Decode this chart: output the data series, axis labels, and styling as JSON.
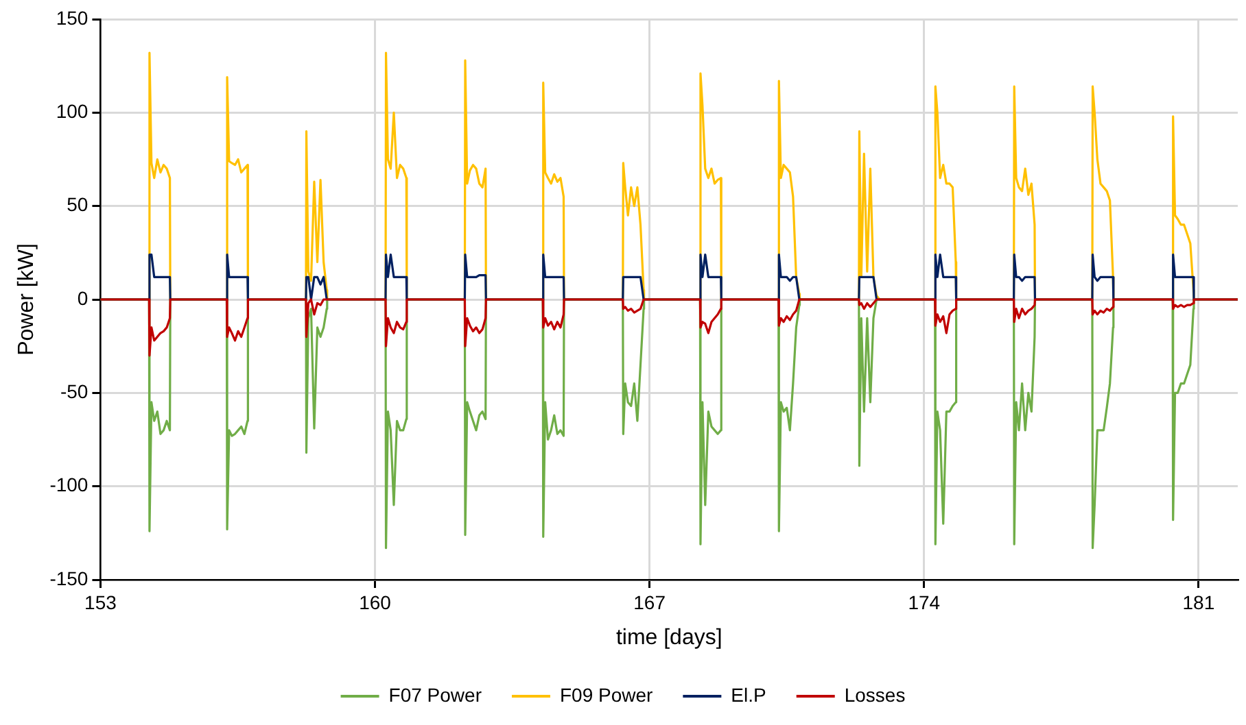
{
  "chart_data": {
    "type": "line",
    "xlabel": "time [days]",
    "ylabel": "Power [kW]",
    "xlim": [
      153,
      182
    ],
    "xticks": [
      153,
      160,
      167,
      174,
      181
    ],
    "ylim": [
      -150,
      150
    ],
    "yticks": [
      -150,
      -100,
      -50,
      0,
      50,
      100,
      150
    ],
    "grid": true,
    "legend": "bottom",
    "marker": "none",
    "line_style": "solid",
    "x": [
      153,
      154.24,
      154.25,
      154.3,
      154.37,
      154.45,
      154.53,
      154.61,
      154.69,
      154.77,
      154.78,
      156.22,
      156.23,
      156.28,
      156.35,
      156.43,
      156.51,
      156.59,
      156.67,
      156.75,
      156.76,
      158.24,
      158.25,
      158.3,
      158.37,
      158.45,
      158.53,
      158.61,
      158.69,
      158.77,
      158.78,
      160.27,
      160.28,
      160.33,
      160.4,
      160.48,
      160.56,
      160.64,
      160.72,
      160.8,
      160.81,
      162.29,
      162.3,
      162.35,
      162.42,
      162.5,
      162.58,
      162.66,
      162.74,
      162.82,
      162.83,
      164.28,
      164.29,
      164.34,
      164.41,
      164.49,
      164.57,
      164.65,
      164.73,
      164.81,
      164.82,
      166.32,
      166.33,
      166.38,
      166.45,
      166.53,
      166.61,
      166.69,
      166.77,
      166.85,
      166.86,
      168.29,
      168.3,
      168.35,
      168.42,
      168.5,
      168.58,
      168.66,
      168.74,
      168.82,
      168.83,
      170.29,
      170.3,
      170.35,
      170.42,
      170.5,
      170.58,
      170.66,
      170.74,
      170.82,
      170.83,
      172.34,
      172.35,
      172.4,
      172.47,
      172.55,
      172.63,
      172.71,
      172.79,
      172.87,
      172.88,
      174.28,
      174.29,
      174.34,
      174.41,
      174.49,
      174.57,
      174.65,
      174.73,
      174.81,
      174.82,
      176.29,
      176.3,
      176.35,
      176.42,
      176.5,
      176.58,
      176.66,
      176.74,
      176.82,
      176.83,
      178.29,
      178.3,
      178.35,
      178.42,
      178.5,
      178.58,
      178.66,
      178.74,
      178.82,
      178.83,
      180.34,
      180.35,
      180.4,
      180.47,
      180.55,
      180.63,
      180.71,
      180.79,
      180.87,
      180.88,
      182
    ],
    "series": [
      {
        "name": "F07 Power",
        "color": "#70ad47",
        "values": [
          0,
          0,
          -124,
          -55,
          -65,
          -60,
          -72,
          -70,
          -65,
          -70,
          0,
          0,
          -123,
          -70,
          -73,
          -72,
          -70,
          -68,
          -72,
          -65,
          0,
          0,
          -82,
          -10,
          -5,
          -69,
          -15,
          -20,
          -15,
          -5,
          0,
          0,
          -133,
          -60,
          -70,
          -110,
          -65,
          -70,
          -70,
          -64,
          0,
          0,
          -126,
          -55,
          -60,
          -65,
          -70,
          -62,
          -60,
          -64,
          0,
          0,
          -127,
          -55,
          -75,
          -70,
          -62,
          -72,
          -70,
          -73,
          0,
          0,
          -72,
          -45,
          -55,
          -57,
          -45,
          -65,
          -35,
          -5,
          0,
          0,
          -131,
          -55,
          -110,
          -60,
          -68,
          -70,
          -72,
          -70,
          0,
          0,
          -124,
          -55,
          -60,
          -58,
          -70,
          -45,
          -15,
          -3,
          0,
          0,
          -89,
          -10,
          -60,
          -10,
          -55,
          -10,
          0,
          0,
          0,
          0,
          -131,
          -60,
          -70,
          -120,
          -60,
          -60,
          -57,
          -55,
          0,
          0,
          -131,
          -55,
          -70,
          -45,
          -70,
          -50,
          -60,
          -20,
          0,
          0,
          -133,
          -110,
          -70,
          -70,
          -70,
          -58,
          -45,
          -15,
          0,
          0,
          -118,
          -50,
          -50,
          -45,
          -45,
          -40,
          -35,
          -5,
          0,
          0
        ]
      },
      {
        "name": "F09 Power",
        "color": "#ffc000",
        "values": [
          0,
          0,
          132,
          73,
          65,
          75,
          68,
          72,
          70,
          65,
          0,
          0,
          119,
          74,
          73,
          72,
          75,
          68,
          70,
          72,
          0,
          0,
          90,
          15,
          10,
          63,
          20,
          64,
          20,
          5,
          0,
          0,
          132,
          75,
          70,
          100,
          65,
          72,
          70,
          65,
          0,
          0,
          128,
          62,
          69,
          72,
          70,
          62,
          60,
          70,
          0,
          0,
          116,
          68,
          65,
          62,
          67,
          63,
          65,
          55,
          0,
          0,
          73,
          60,
          45,
          60,
          50,
          60,
          40,
          5,
          0,
          0,
          121,
          104,
          70,
          65,
          70,
          62,
          64,
          65,
          0,
          0,
          117,
          65,
          72,
          70,
          68,
          55,
          12,
          3,
          0,
          0,
          90,
          12,
          78,
          15,
          70,
          12,
          2,
          0,
          0,
          0,
          114,
          100,
          65,
          72,
          62,
          62,
          60,
          20,
          0,
          0,
          114,
          65,
          60,
          58,
          70,
          56,
          62,
          40,
          0,
          0,
          114,
          100,
          75,
          62,
          60,
          58,
          53,
          12,
          0,
          0,
          98,
          45,
          43,
          40,
          40,
          35,
          30,
          5,
          0,
          0
        ]
      },
      {
        "name": "El.P",
        "color": "#002060",
        "values": [
          0,
          0,
          24,
          24,
          12,
          12,
          12,
          12,
          12,
          12,
          0,
          0,
          24,
          12,
          12,
          12,
          12,
          12,
          12,
          12,
          0,
          0,
          12,
          12,
          0,
          12,
          12,
          8,
          12,
          0,
          0,
          0,
          24,
          12,
          24,
          12,
          12,
          12,
          12,
          12,
          0,
          0,
          24,
          12,
          12,
          12,
          12,
          13,
          13,
          13,
          0,
          0,
          24,
          12,
          12,
          12,
          12,
          12,
          12,
          12,
          0,
          0,
          12,
          12,
          12,
          12,
          12,
          12,
          12,
          0,
          0,
          0,
          24,
          12,
          24,
          12,
          12,
          12,
          12,
          12,
          0,
          0,
          24,
          12,
          12,
          12,
          10,
          12,
          12,
          0,
          0,
          0,
          12,
          12,
          12,
          12,
          12,
          12,
          0,
          0,
          0,
          0,
          24,
          12,
          24,
          12,
          12,
          12,
          12,
          12,
          0,
          0,
          24,
          12,
          12,
          10,
          12,
          12,
          12,
          12,
          0,
          0,
          24,
          12,
          10,
          12,
          12,
          12,
          12,
          12,
          0,
          0,
          24,
          12,
          12,
          12,
          12,
          12,
          12,
          12,
          0,
          0
        ]
      },
      {
        "name": "Losses",
        "color": "#c00000",
        "values": [
          0,
          0,
          -30,
          -15,
          -22,
          -20,
          -18,
          -17,
          -15,
          -10,
          0,
          0,
          -20,
          -15,
          -18,
          -22,
          -17,
          -20,
          -15,
          -10,
          0,
          0,
          -20,
          -2,
          0,
          -8,
          -2,
          -3,
          0,
          0,
          0,
          0,
          -25,
          -10,
          -15,
          -18,
          -12,
          -15,
          -16,
          -12,
          0,
          0,
          -25,
          -10,
          -14,
          -17,
          -15,
          -18,
          -16,
          -10,
          0,
          0,
          -15,
          -10,
          -14,
          -12,
          -16,
          -12,
          -15,
          -8,
          0,
          0,
          -5,
          -4,
          -6,
          -5,
          -7,
          -6,
          -5,
          0,
          0,
          0,
          -15,
          -12,
          -13,
          -18,
          -12,
          -10,
          -8,
          -5,
          0,
          0,
          -14,
          -10,
          -12,
          -9,
          -11,
          -8,
          -6,
          0,
          0,
          0,
          -3,
          -2,
          -5,
          -2,
          -4,
          -2,
          0,
          0,
          0,
          0,
          -14,
          -8,
          -12,
          -9,
          -18,
          -8,
          -6,
          -5,
          0,
          0,
          -12,
          -5,
          -10,
          -5,
          -8,
          -6,
          -5,
          -3,
          0,
          0,
          -8,
          -6,
          -8,
          -6,
          -7,
          -5,
          -6,
          -4,
          0,
          0,
          -5,
          -3,
          -4,
          -3,
          -4,
          -3,
          -3,
          -2,
          0,
          0
        ]
      }
    ]
  }
}
